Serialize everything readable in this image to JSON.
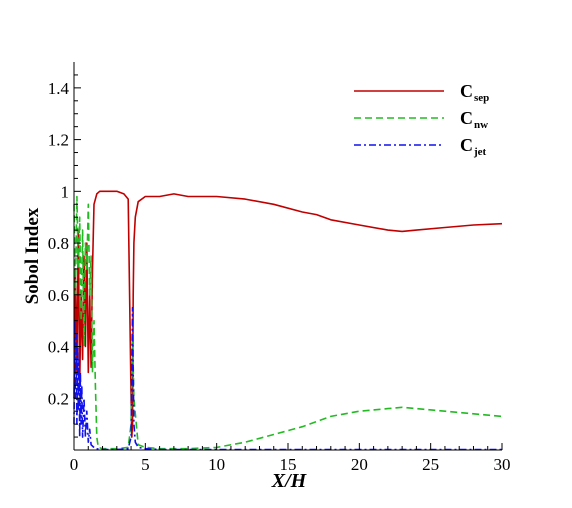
{
  "chart_data": {
    "type": "line",
    "title": "",
    "xlabel": "X/H",
    "ylabel": "Sobol Index",
    "xlim": [
      0,
      30
    ],
    "ylim": [
      0,
      1.5
    ],
    "xticks": [
      0,
      5,
      10,
      15,
      20,
      25,
      30
    ],
    "xtick_labels": [
      "0",
      "5",
      "10",
      "15",
      "20",
      "25",
      "30"
    ],
    "yticks": [
      0.2,
      0.4,
      0.6,
      0.8,
      1.0,
      1.2,
      1.4
    ],
    "ytick_labels": [
      "0.2",
      "0.4",
      "0.6",
      "0.8",
      "1",
      "1.2",
      "1.4"
    ],
    "grid": false,
    "legend_position": "top-right",
    "series": [
      {
        "name": "C_sep",
        "legend_main": "C",
        "legend_sub": "sep",
        "color": "#c00000",
        "dash": "solid",
        "x": [
          0,
          0.1,
          0.2,
          0.3,
          0.4,
          0.5,
          0.6,
          0.7,
          0.8,
          0.9,
          1.0,
          1.1,
          1.2,
          1.3,
          1.4,
          1.6,
          1.8,
          2.0,
          2.5,
          3.0,
          3.5,
          3.8,
          3.9,
          4.0,
          4.05,
          4.1,
          4.15,
          4.2,
          4.3,
          4.5,
          5.0,
          6.0,
          7.0,
          8.0,
          10.0,
          12.0,
          14.0,
          16.0,
          17.0,
          18.0,
          20.0,
          22.0,
          23.0,
          24.0,
          26.0,
          28.0,
          30.0
        ],
        "y": [
          0.2,
          0.7,
          0.3,
          0.85,
          0.25,
          0.6,
          0.35,
          0.75,
          0.4,
          0.8,
          0.3,
          0.6,
          0.32,
          0.7,
          0.95,
          0.99,
          1.0,
          1.0,
          1.0,
          1.0,
          0.99,
          0.97,
          0.6,
          0.2,
          0.05,
          0.1,
          0.6,
          0.8,
          0.9,
          0.96,
          0.98,
          0.98,
          0.99,
          0.98,
          0.98,
          0.97,
          0.95,
          0.92,
          0.91,
          0.89,
          0.87,
          0.85,
          0.845,
          0.85,
          0.86,
          0.87,
          0.875
        ]
      },
      {
        "name": "C_nw",
        "legend_main": "C",
        "legend_sub": "nw",
        "color": "#22bb22",
        "dash": "dashed",
        "x": [
          0,
          0.1,
          0.2,
          0.3,
          0.4,
          0.5,
          0.6,
          0.7,
          0.8,
          0.9,
          1.0,
          1.1,
          1.2,
          1.3,
          1.4,
          1.5,
          1.6,
          1.7,
          2.0,
          3.0,
          3.8,
          4.0,
          4.1,
          4.2,
          4.5,
          5.0,
          6.0,
          8.0,
          10.0,
          12.0,
          14.0,
          16.0,
          18.0,
          20.0,
          22.0,
          23.0,
          24.0,
          26.0,
          28.0,
          30.0
        ],
        "y": [
          0.95,
          0.6,
          0.98,
          0.7,
          0.9,
          0.5,
          0.85,
          0.4,
          0.8,
          0.7,
          0.95,
          0.6,
          0.75,
          0.3,
          0.5,
          0.25,
          0.05,
          0.01,
          0.005,
          0.005,
          0.01,
          0.1,
          0.45,
          0.2,
          0.02,
          0.01,
          0.005,
          0.005,
          0.01,
          0.03,
          0.06,
          0.09,
          0.13,
          0.15,
          0.16,
          0.165,
          0.16,
          0.15,
          0.14,
          0.13
        ]
      },
      {
        "name": "C_jet",
        "legend_main": "C",
        "legend_sub": "jet",
        "color": "#1010ee",
        "dash": "dashdot",
        "x": [
          0,
          0.05,
          0.1,
          0.15,
          0.2,
          0.25,
          0.3,
          0.35,
          0.4,
          0.45,
          0.5,
          0.55,
          0.6,
          0.7,
          0.8,
          0.9,
          1.0,
          1.1,
          1.2,
          1.5,
          2.0,
          3.0,
          3.8,
          4.0,
          4.1,
          4.15,
          4.2,
          4.3,
          4.5,
          5.0,
          6.0,
          10.0,
          20.0,
          30.0
        ],
        "y": [
          0.1,
          0.5,
          0.2,
          0.45,
          0.1,
          0.4,
          0.15,
          0.35,
          0.05,
          0.3,
          0.1,
          0.25,
          0.05,
          0.2,
          0.05,
          0.15,
          0.03,
          0.08,
          0.02,
          0.005,
          0.002,
          0.002,
          0.005,
          0.05,
          0.55,
          0.3,
          0.1,
          0.03,
          0.01,
          0.005,
          0.002,
          0.002,
          0.002,
          0.002
        ]
      }
    ]
  }
}
